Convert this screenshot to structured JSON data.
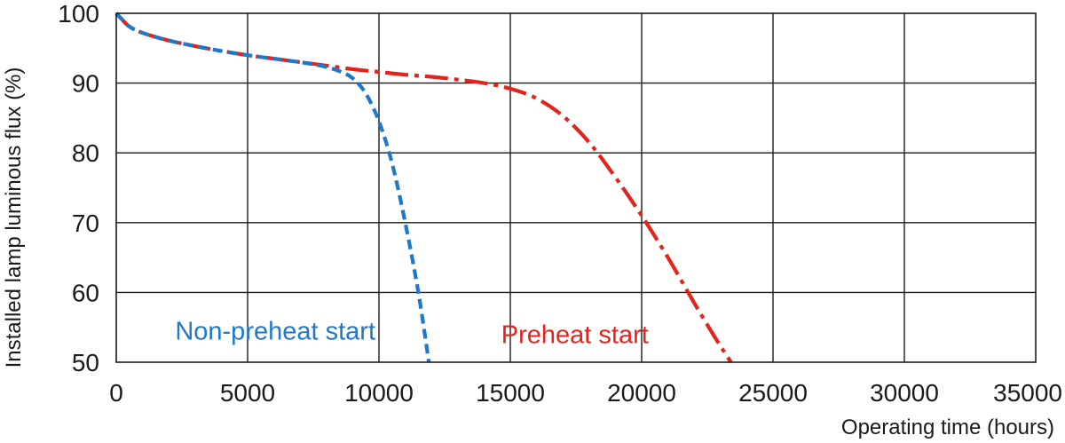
{
  "chart_data": {
    "type": "line",
    "title": "",
    "xlabel": "Operating time (hours)",
    "ylabel": "Installed lamp luminous flux  (%)",
    "xlim": [
      0,
      35000
    ],
    "ylim": [
      50,
      100
    ],
    "xticks": [
      0,
      5000,
      10000,
      15000,
      20000,
      25000,
      30000,
      35000
    ],
    "yticks": [
      50,
      60,
      70,
      80,
      90,
      100
    ],
    "xtick_labels": [
      "0",
      "5000",
      "10000",
      "15000",
      "20000",
      "25000",
      "30000",
      "35000"
    ],
    "ytick_labels": [
      "50",
      "60",
      "70",
      "80",
      "90",
      "100"
    ],
    "grid": true,
    "legend": "none",
    "series": [
      {
        "name": "Non-preheat start",
        "color": "#1f78c8",
        "line_style": "dashed",
        "x": [
          0,
          200,
          500,
          1000,
          2000,
          3000,
          4000,
          5000,
          6000,
          7000,
          7500,
          8000,
          8500,
          9000,
          9500,
          10000,
          10500,
          11000,
          11500,
          11900
        ],
        "y": [
          100,
          99.2,
          98.1,
          97.2,
          96.1,
          95.3,
          94.6,
          94.0,
          93.5,
          93.0,
          92.7,
          92.3,
          91.7,
          90.7,
          88.5,
          84.5,
          78.5,
          70.0,
          60.0,
          50.0
        ]
      },
      {
        "name": "Preheat start",
        "color": "#e3231c",
        "line_style": "dash-dot",
        "x": [
          0,
          200,
          500,
          1000,
          2000,
          3000,
          4000,
          5000,
          6000,
          7000,
          8000,
          9000,
          10000,
          11000,
          12000,
          13000,
          14000,
          15000,
          16000,
          17000,
          18000,
          19000,
          20000,
          21000,
          22000,
          22800,
          23400
        ],
        "y": [
          100,
          99.2,
          98.1,
          97.2,
          96.1,
          95.3,
          94.6,
          94.0,
          93.5,
          93.0,
          92.5,
          92.0,
          91.6,
          91.2,
          90.9,
          90.5,
          90.0,
          89.2,
          87.8,
          85.3,
          81.5,
          76.5,
          71.0,
          65.0,
          58.5,
          53.5,
          50.0
        ]
      }
    ],
    "annotations": [
      {
        "text": "Non-preheat start",
        "color": "#1f78c8",
        "x": 10000,
        "y": 54.5,
        "anchor": "end"
      },
      {
        "text": "Preheat start",
        "color": "#e3231c",
        "x": 20400,
        "y": 54.0,
        "anchor": "end"
      }
    ]
  }
}
